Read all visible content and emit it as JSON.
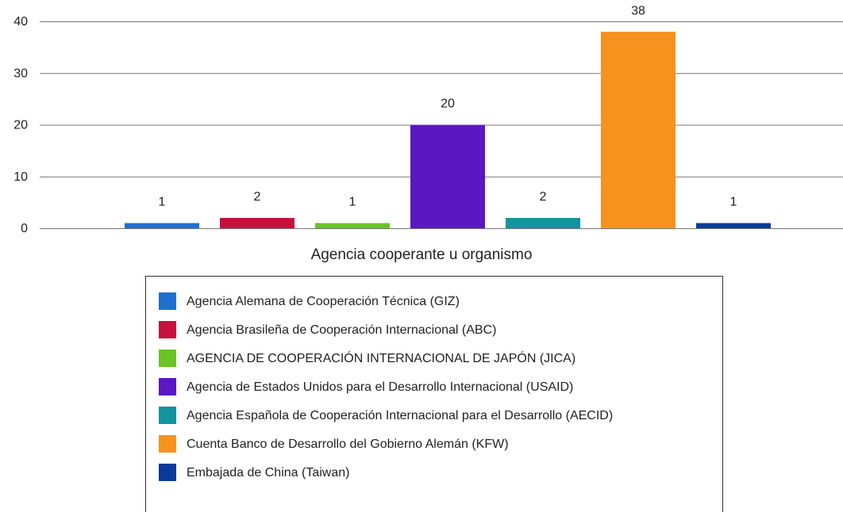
{
  "chart_data": {
    "type": "bar",
    "x_label": "Agencia cooperante u organismo",
    "categories": [
      null
    ],
    "series": [
      {
        "name": "Agencia Alemana de Cooperación Técnica (GIZ)",
        "color": "#1f6fd1",
        "values": [
          1
        ]
      },
      {
        "name": "Agencia Brasileña de Cooperación Internacional (ABC)",
        "color": "#c8103e",
        "values": [
          2
        ]
      },
      {
        "name": "AGENCIA DE COOPERACIÓN INTERNACIONAL DE JAPÓN (JICA)",
        "color": "#6cc324",
        "values": [
          1
        ]
      },
      {
        "name": "Agencia de Estados Unidos para el Desarrollo Internacional (USAID)",
        "color": "#5a17c2",
        "values": [
          20
        ]
      },
      {
        "name": "Agencia Española de Cooperación Internacional para el Desarrollo (AECID)",
        "color": "#14949e",
        "values": [
          2
        ]
      },
      {
        "name": "Cuenta Banco de Desarrollo del Gobierno Alemán (KFW)",
        "color": "#f7921e",
        "values": [
          38
        ]
      },
      {
        "name": "Embajada de China (Taiwan)",
        "color": "#0b3a9a",
        "values": [
          1
        ]
      }
    ],
    "ylim": [
      0,
      40
    ],
    "yticks": [
      0,
      10,
      20,
      30,
      40
    ],
    "grid": true,
    "legend": "bottom"
  }
}
